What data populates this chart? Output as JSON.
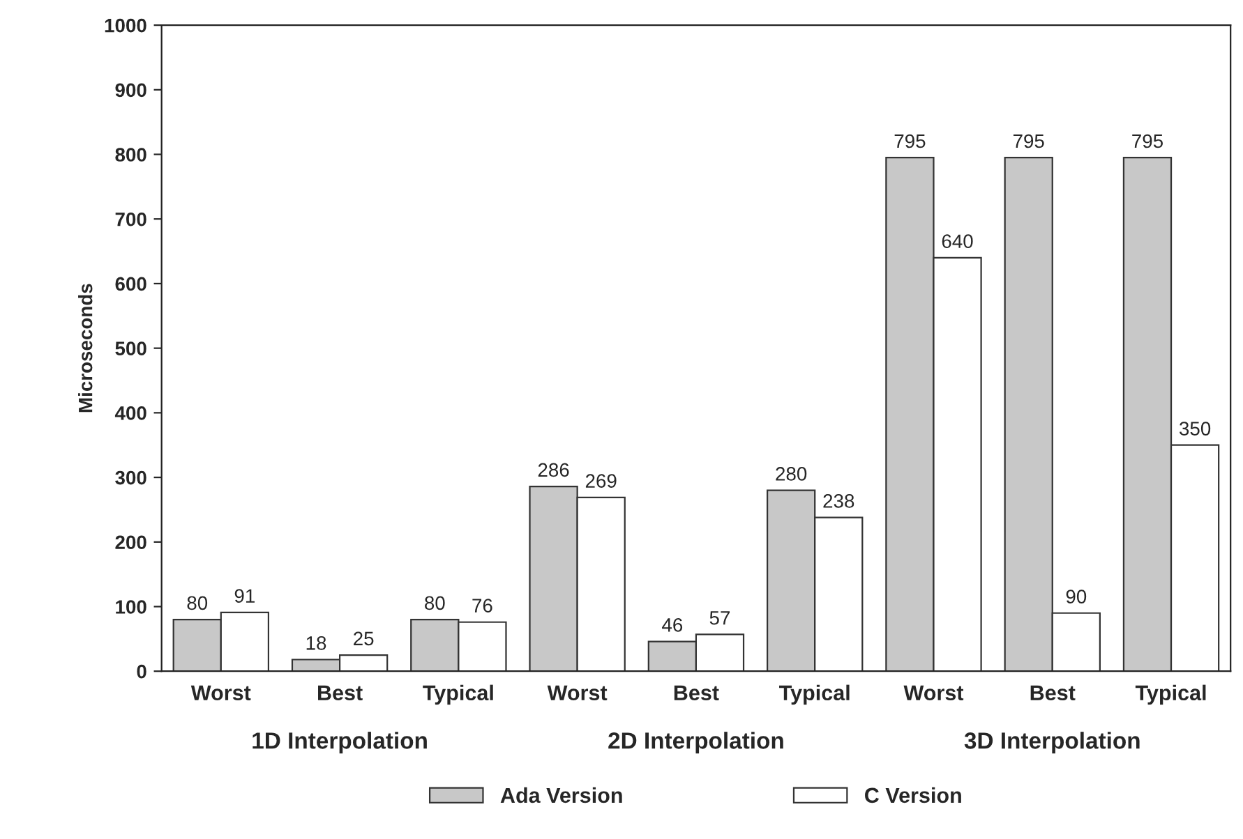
{
  "chart_data": {
    "type": "bar",
    "ylabel": "Microseconds",
    "categories": [
      "Worst",
      "Best",
      "Typical",
      "Worst",
      "Best",
      "Typical",
      "Worst",
      "Best",
      "Typical"
    ],
    "series": [
      {
        "name": "Ada Version",
        "color": "#c8c8c8",
        "values": [
          80,
          18,
          80,
          286,
          46,
          280,
          795,
          795,
          795
        ]
      },
      {
        "name": "C Version",
        "color": "#ffffff",
        "values": [
          91,
          25,
          76,
          269,
          57,
          238,
          640,
          90,
          350
        ]
      }
    ],
    "annotations": [
      "1D Interpolation",
      "2D Interpolation",
      "3D Interpolation"
    ],
    "ylim": [
      0,
      1000
    ],
    "yticks": [
      0,
      100,
      200,
      300,
      400,
      500,
      600,
      700,
      800,
      900,
      1000
    ],
    "data_labels": true,
    "grid": false,
    "legend": "bottom"
  }
}
